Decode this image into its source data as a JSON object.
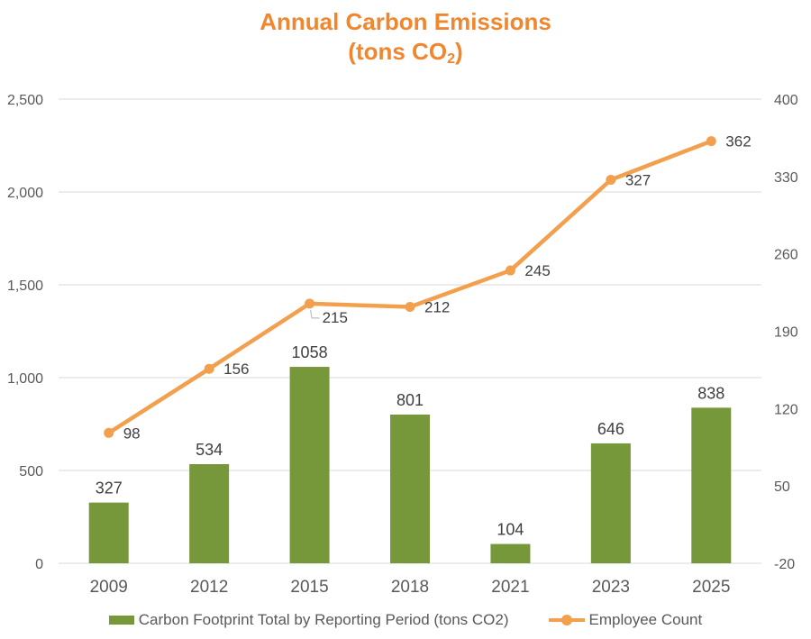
{
  "title": {
    "line1": "Annual Carbon Emissions",
    "line2_prefix": "(tons CO",
    "line2_sub": "2",
    "line2_suffix": ")"
  },
  "colors": {
    "title": "#F0862D",
    "bar": "#76983B",
    "line": "#F2A04E",
    "grid": "#D9D9D9",
    "axis_text": "#595959",
    "data_label": "#404040",
    "leader": "#BFBFBF"
  },
  "chart_data": {
    "type": "bar+line combo",
    "title": "Annual Carbon Emissions (tons CO2)",
    "categories": [
      "2009",
      "2012",
      "2015",
      "2018",
      "2021",
      "2023",
      "2025"
    ],
    "series": [
      {
        "name": "Carbon Footprint Total by Reporting Period (tons CO2)",
        "type": "bar",
        "axis": "left",
        "values": [
          327,
          534,
          1058,
          801,
          104,
          646,
          838
        ]
      },
      {
        "name": "Employee Count",
        "type": "line",
        "axis": "right",
        "values": [
          98,
          156,
          215,
          212,
          245,
          327,
          362
        ]
      }
    ],
    "left_axis": {
      "min": 0,
      "max": 2500,
      "step": 500,
      "ticks": [
        "0",
        "500",
        "1,000",
        "1,500",
        "2,000",
        "2,500"
      ]
    },
    "right_axis": {
      "min": -20,
      "max": 400,
      "step": 70,
      "ticks": [
        "-20",
        "50",
        "120",
        "190",
        "260",
        "330",
        "400"
      ]
    },
    "grid": true,
    "legend_position": "bottom",
    "data_labels": true,
    "callout_label": {
      "series": "Employee Count",
      "index": 2,
      "note": "label moved below point with leader line"
    }
  },
  "legend": {
    "items": [
      {
        "label": "Carbon Footprint Total by Reporting Period (tons CO2)"
      },
      {
        "label": "Employee Count"
      }
    ]
  }
}
